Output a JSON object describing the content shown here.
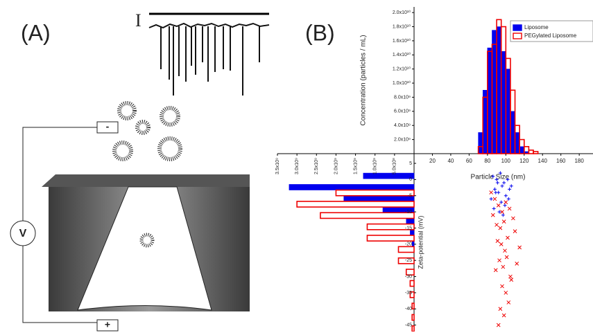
{
  "panel_a": {
    "label": "(A)",
    "current_symbol": "I",
    "electrode_negative": "-",
    "voltmeter": "V",
    "electrode_positive": "+"
  },
  "panel_b_label": "(B)",
  "chart_data": [
    {
      "type": "histogram",
      "x_label": "Particle Size (nm)",
      "y_label": "Concentration (particles / mL)",
      "bins": [
        70,
        75,
        80,
        85,
        90,
        95,
        100,
        105,
        110,
        115,
        120,
        125,
        130,
        135
      ],
      "series": [
        {
          "name": "Liposome",
          "color": "#0000ee",
          "values": [
            3000000000,
            9000000000,
            15000000000,
            17500000000,
            18000000000,
            14500000000,
            12000000000,
            6000000000,
            3000000000,
            1000000000,
            300000000,
            0,
            0
          ]
        },
        {
          "name": "PEGylated Liposome",
          "color": "#ee0000",
          "values": [
            1000000000,
            8000000000,
            14500000000,
            15500000000,
            19000000000,
            18000000000,
            13500000000,
            9000000000,
            4000000000,
            2000000000,
            1000000000,
            500000000,
            300000000
          ]
        }
      ],
      "xlim": [
        0,
        195
      ],
      "xticks": [
        20,
        40,
        60,
        80,
        100,
        120,
        140,
        160,
        180
      ],
      "ylim": [
        0,
        20800000000
      ],
      "yticks": [
        {
          "value": 2000000000,
          "label": "2.0x10⁹"
        },
        {
          "value": 4000000000,
          "label": "4.0x10⁹"
        },
        {
          "value": 6000000000,
          "label": "6.0x10⁹"
        },
        {
          "value": 8000000000,
          "label": "8.0x10⁹"
        },
        {
          "value": 10000000000,
          "label": "1.0x10¹⁰"
        },
        {
          "value": 12000000000,
          "label": "1.2x10¹⁰"
        },
        {
          "value": 14000000000,
          "label": "1.4x10¹⁰"
        },
        {
          "value": 16000000000,
          "label": "1.6x10¹⁰"
        },
        {
          "value": 18000000000,
          "label": "1.8x10¹⁰"
        },
        {
          "value": 20000000000,
          "label": "2.0x10¹⁰"
        }
      ],
      "legend": "top-right"
    },
    {
      "type": "hbar-histogram",
      "y_label": "Zeta-potential (mV)",
      "bins": [
        2,
        -1.5,
        -5,
        -8.5,
        -12,
        -15.5,
        -19,
        -22.5,
        -26,
        -29.5,
        -33,
        -36.5,
        -40,
        -43.5,
        -47
      ],
      "series": [
        {
          "name": "Liposome",
          "color": "#0000ee",
          "values": [
            1300000000,
            3200000000,
            1800000000,
            800000000,
            200000000,
            100000000,
            50000000,
            0,
            0,
            0,
            0,
            0,
            0,
            0
          ]
        },
        {
          "name": "PEGylated Liposome",
          "color": "#ee0000",
          "values": [
            0,
            2000000000,
            3000000000,
            2400000000,
            1200000000,
            1200000000,
            400000000,
            400000000,
            200000000,
            100000000,
            100000000,
            50000000,
            50000000,
            50000000
          ]
        }
      ],
      "xlim": [
        0,
        3500000000
      ],
      "xticks": [
        {
          "value": 3500000000,
          "label": "3.5x10⁹"
        },
        {
          "value": 3000000000,
          "label": "3.0x10⁹"
        },
        {
          "value": 2500000000,
          "label": "2.5x10⁹"
        },
        {
          "value": 2000000000,
          "label": "2.0x10⁹"
        },
        {
          "value": 1500000000,
          "label": "1.5x10⁹"
        },
        {
          "value": 1000000000,
          "label": "1.0x10⁹"
        },
        {
          "value": 500000000,
          "label": "5.0x10⁸"
        }
      ],
      "ylim": [
        8,
        -47
      ],
      "yticks": [
        5,
        0,
        -5,
        -10,
        -15,
        -20,
        -25,
        -30,
        -35,
        -40,
        -45
      ]
    },
    {
      "type": "scatter",
      "xlim": [
        0,
        195
      ],
      "ylim": [
        8,
        -47
      ],
      "series": [
        {
          "name": "Liposome",
          "color": "#0000ee",
          "x": [
            86,
            90,
            94,
            98,
            102,
            106,
            88,
            92,
            96,
            100,
            104,
            84,
            95,
            99,
            91,
            87,
            103,
            93,
            97,
            89
          ],
          "y": [
            1,
            0,
            2,
            -1,
            0,
            -2,
            -3,
            -4,
            -2,
            -5,
            -3,
            -6,
            -7,
            -8,
            -1,
            -9,
            -6,
            -10,
            -11,
            -4
          ]
        },
        {
          "name": "PEGylated Liposome",
          "color": "#ee0000",
          "x": [
            84,
            88,
            92,
            96,
            100,
            104,
            108,
            90,
            94,
            98,
            102,
            86,
            95,
            99,
            110,
            93,
            97,
            101,
            105,
            91,
            96,
            100,
            89,
            103,
            112,
            94,
            98,
            115,
            92,
            106
          ],
          "y": [
            -4,
            -6,
            -8,
            -10,
            -7,
            -9,
            -12,
            -14,
            -15,
            -13,
            -18,
            -11,
            -20,
            -22,
            -16,
            -25,
            -27,
            -24,
            -30,
            -19,
            -33,
            -35,
            -28,
            -38,
            -26,
            -40,
            -42,
            -21,
            -45,
            -31
          ]
        }
      ]
    }
  ]
}
